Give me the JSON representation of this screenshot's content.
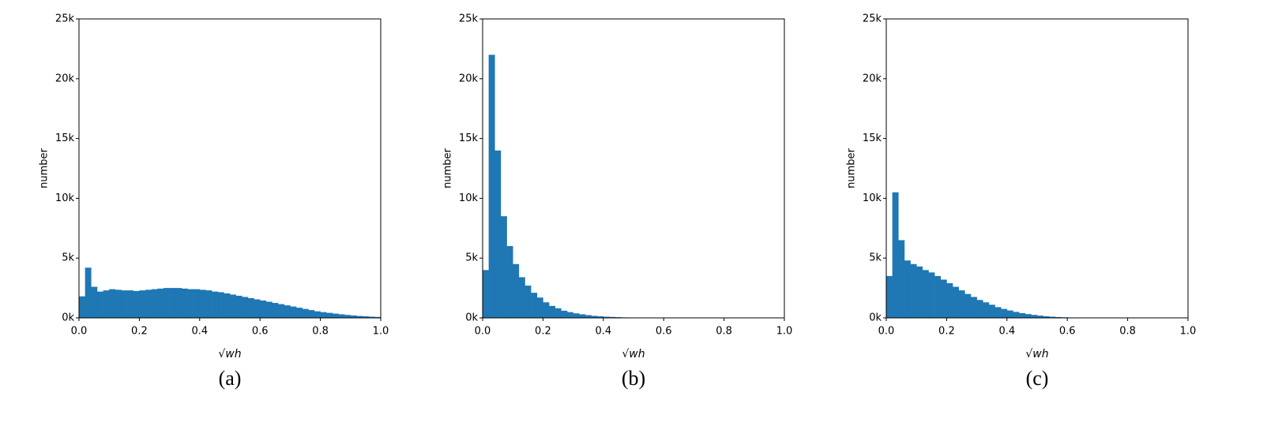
{
  "chart_data": [
    {
      "type": "histogram",
      "caption": "(a)",
      "xlabel": "√wh",
      "ylabel": "number",
      "color": "#1f77b4",
      "bins": [
        0,
        0.02,
        0.04,
        0.06,
        0.08,
        0.1,
        0.12,
        0.14,
        0.16,
        0.18,
        0.2,
        0.22,
        0.24,
        0.26,
        0.28,
        0.3,
        0.32,
        0.34,
        0.36,
        0.38,
        0.4,
        0.42,
        0.44,
        0.46,
        0.48,
        0.5,
        0.52,
        0.54,
        0.56,
        0.58,
        0.6,
        0.62,
        0.64,
        0.66,
        0.68,
        0.7,
        0.72,
        0.74,
        0.76,
        0.78,
        0.8,
        0.82,
        0.84,
        0.86,
        0.88,
        0.9,
        0.92,
        0.94,
        0.96,
        0.98,
        1
      ],
      "counts": [
        1800,
        4200,
        2600,
        2200,
        2300,
        2400,
        2350,
        2300,
        2300,
        2250,
        2300,
        2350,
        2400,
        2450,
        2500,
        2500,
        2500,
        2450,
        2400,
        2400,
        2350,
        2300,
        2200,
        2150,
        2050,
        1950,
        1850,
        1750,
        1650,
        1550,
        1450,
        1350,
        1250,
        1150,
        1050,
        950,
        850,
        750,
        650,
        550,
        480,
        420,
        360,
        300,
        250,
        200,
        160,
        130,
        100,
        80
      ],
      "xlim": [
        0,
        1
      ],
      "ylim": [
        0,
        25000
      ],
      "xticks": [
        {
          "value": 0,
          "label": "0.0"
        },
        0.2,
        0.4,
        0.6,
        0.8,
        {
          "value": 1,
          "label": "1.0"
        }
      ],
      "yticks": [
        {
          "value": 0,
          "label": "0k"
        },
        {
          "value": 5000,
          "label": "5k"
        },
        {
          "value": 10000,
          "label": "10k"
        },
        {
          "value": 15000,
          "label": "15k"
        },
        {
          "value": 20000,
          "label": "20k"
        },
        {
          "value": 25000,
          "label": "25k"
        }
      ]
    },
    {
      "type": "histogram",
      "caption": "(b)",
      "xlabel": "√wh",
      "ylabel": "number",
      "color": "#1f77b4",
      "bins": [
        0,
        0.02,
        0.04,
        0.06,
        0.08,
        0.1,
        0.12,
        0.14,
        0.16,
        0.18,
        0.2,
        0.22,
        0.24,
        0.26,
        0.28,
        0.3,
        0.32,
        0.34,
        0.36,
        0.38,
        0.4,
        0.42,
        0.44,
        0.46,
        0.48,
        0.5,
        0.52,
        0.54,
        0.56,
        0.58,
        0.6,
        0.62,
        0.64,
        0.66,
        0.68,
        0.7,
        0.72,
        0.74,
        0.76,
        0.78,
        0.8,
        0.82,
        0.84,
        0.86,
        0.88,
        0.9,
        0.92,
        0.94,
        0.96,
        0.98,
        1
      ],
      "counts": [
        4000,
        22000,
        14000,
        8500,
        6000,
        4500,
        3400,
        2700,
        2100,
        1700,
        1300,
        1000,
        800,
        600,
        480,
        380,
        300,
        230,
        170,
        130,
        100,
        80,
        60,
        40,
        30,
        20,
        15,
        10,
        8,
        5,
        4,
        3,
        2,
        2,
        1,
        1,
        1,
        1,
        0,
        0,
        0,
        0,
        0,
        0,
        0,
        0,
        0,
        0,
        0,
        0
      ],
      "xlim": [
        0,
        1
      ],
      "ylim": [
        0,
        25000
      ],
      "xticks": [
        {
          "value": 0,
          "label": "0.0"
        },
        0.2,
        0.4,
        0.6,
        0.8,
        {
          "value": 1,
          "label": "1.0"
        }
      ],
      "yticks": [
        {
          "value": 0,
          "label": "0k"
        },
        {
          "value": 5000,
          "label": "5k"
        },
        {
          "value": 10000,
          "label": "10k"
        },
        {
          "value": 15000,
          "label": "15k"
        },
        {
          "value": 20000,
          "label": "20k"
        },
        {
          "value": 25000,
          "label": "25k"
        }
      ]
    },
    {
      "type": "histogram",
      "caption": "(c)",
      "xlabel": "√wh",
      "ylabel": "number",
      "color": "#1f77b4",
      "bins": [
        0,
        0.02,
        0.04,
        0.06,
        0.08,
        0.1,
        0.12,
        0.14,
        0.16,
        0.18,
        0.2,
        0.22,
        0.24,
        0.26,
        0.28,
        0.3,
        0.32,
        0.34,
        0.36,
        0.38,
        0.4,
        0.42,
        0.44,
        0.46,
        0.48,
        0.5,
        0.52,
        0.54,
        0.56,
        0.58,
        0.6,
        0.62,
        0.64,
        0.66,
        0.68,
        0.7,
        0.72,
        0.74,
        0.76,
        0.78,
        0.8,
        0.82,
        0.84,
        0.86,
        0.88,
        0.9,
        0.92,
        0.94,
        0.96,
        0.98,
        1
      ],
      "counts": [
        3500,
        10500,
        6500,
        4800,
        4500,
        4300,
        4000,
        3800,
        3500,
        3200,
        2900,
        2600,
        2300,
        2000,
        1750,
        1500,
        1300,
        1100,
        900,
        750,
        620,
        500,
        400,
        320,
        250,
        190,
        140,
        100,
        70,
        50,
        35,
        25,
        15,
        10,
        5,
        3,
        2,
        1,
        0,
        0,
        0,
        0,
        0,
        0,
        0,
        0,
        0,
        0,
        0,
        0
      ],
      "xlim": [
        0,
        1
      ],
      "ylim": [
        0,
        25000
      ],
      "xticks": [
        {
          "value": 0,
          "label": "0.0"
        },
        0.2,
        0.4,
        0.6,
        0.8,
        {
          "value": 1,
          "label": "1.0"
        }
      ],
      "yticks": [
        {
          "value": 0,
          "label": "0k"
        },
        {
          "value": 5000,
          "label": "5k"
        },
        {
          "value": 10000,
          "label": "10k"
        },
        {
          "value": 15000,
          "label": "15k"
        },
        {
          "value": 20000,
          "label": "20k"
        },
        {
          "value": 25000,
          "label": "25k"
        }
      ]
    }
  ]
}
